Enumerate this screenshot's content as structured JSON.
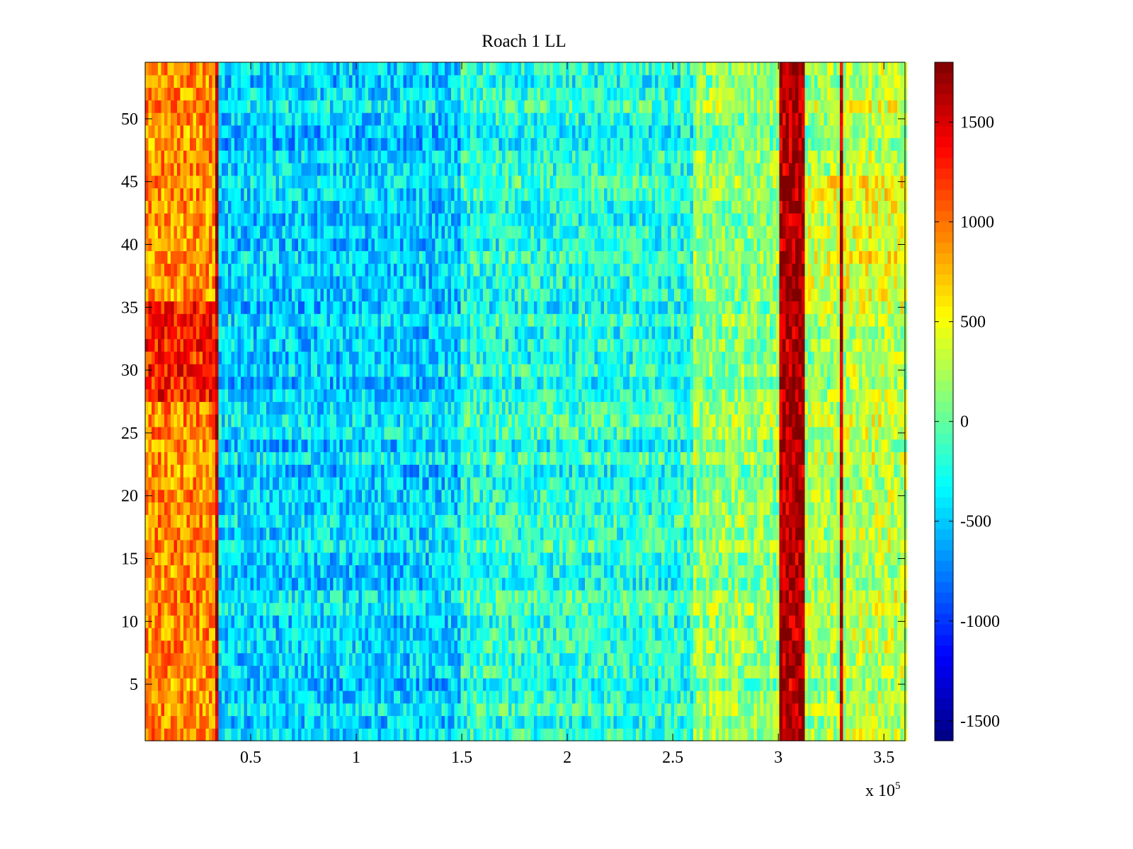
{
  "chart_data": {
    "type": "heatmap",
    "title": "Roach 1 LL",
    "xlabel": "",
    "ylabel": "",
    "x_range": [
      0,
      3.6
    ],
    "x_scale_label": "x 10",
    "x_scale_exponent": "5",
    "y_range": [
      0.5,
      54.5
    ],
    "rows": 54,
    "x_ticks": [
      {
        "value": 0.5,
        "label": "0.5"
      },
      {
        "value": 1,
        "label": "1"
      },
      {
        "value": 1.5,
        "label": "1.5"
      },
      {
        "value": 2,
        "label": "2"
      },
      {
        "value": 2.5,
        "label": "2.5"
      },
      {
        "value": 3,
        "label": "3"
      },
      {
        "value": 3.5,
        "label": "3.5"
      }
    ],
    "y_ticks": [
      {
        "value": 5,
        "label": "5"
      },
      {
        "value": 10,
        "label": "10"
      },
      {
        "value": 15,
        "label": "15"
      },
      {
        "value": 20,
        "label": "20"
      },
      {
        "value": 25,
        "label": "25"
      },
      {
        "value": 30,
        "label": "30"
      },
      {
        "value": 35,
        "label": "35"
      },
      {
        "value": 40,
        "label": "40"
      },
      {
        "value": 45,
        "label": "45"
      },
      {
        "value": 50,
        "label": "50"
      }
    ],
    "colorbar": {
      "colormap": "jet",
      "range": [
        -1600,
        1800
      ],
      "ticks": [
        {
          "value": -1500,
          "label": "-1500"
        },
        {
          "value": -1000,
          "label": "-1000"
        },
        {
          "value": -500,
          "label": "-500"
        },
        {
          "value": 0,
          "label": "0"
        },
        {
          "value": 500,
          "label": "500"
        },
        {
          "value": 1000,
          "label": "1000"
        },
        {
          "value": 1500,
          "label": "1500"
        }
      ]
    },
    "bands": [
      {
        "x_start": 0,
        "x_end": 0.33,
        "value": 900,
        "note": "high activity, peaks ~1500 for rows 28-35"
      },
      {
        "x_start": 0.33,
        "x_end": 0.345,
        "value": 1600
      },
      {
        "x_start": 0.345,
        "x_end": 1.5,
        "value": -450
      },
      {
        "x_start": 1.5,
        "x_end": 2.6,
        "value": -200
      },
      {
        "x_start": 2.6,
        "x_end": 3.01,
        "value": 150
      },
      {
        "x_start": 3.01,
        "x_end": 3.12,
        "value": 1650
      },
      {
        "x_start": 3.12,
        "x_end": 3.29,
        "value": 200
      },
      {
        "x_start": 3.29,
        "x_end": 3.305,
        "value": 1600
      },
      {
        "x_start": 3.305,
        "x_end": 3.6,
        "value": 300
      }
    ],
    "colors": {
      "axis": "#000000",
      "background": "#ffffff"
    }
  }
}
